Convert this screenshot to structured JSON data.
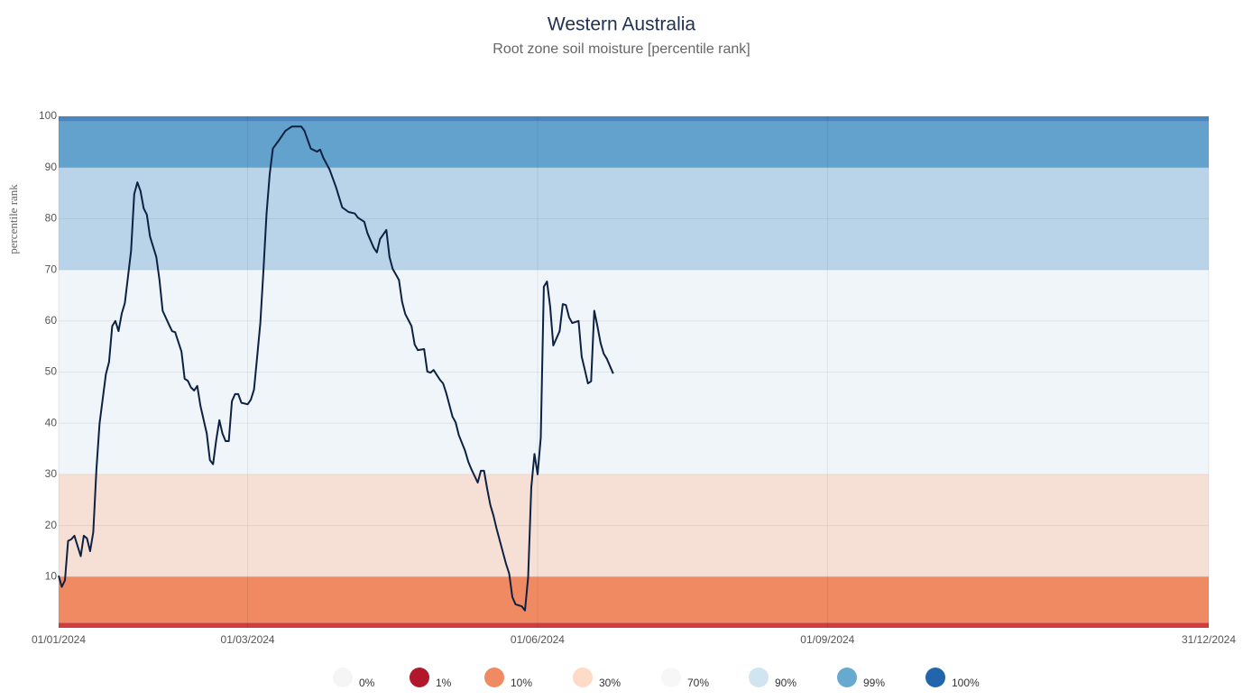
{
  "chart_data": {
    "type": "line",
    "title": "Western Australia",
    "subtitle": "Root zone soil moisture [percentile rank]",
    "y_label": "percentile rank",
    "color": "#0d2143",
    "xlim": [
      "2024-01-01",
      "2024-12-31"
    ],
    "xticks": [
      {
        "value": "2024-01-01",
        "label": "01/01/2024"
      },
      {
        "value": "2024-03-01",
        "label": "01/03/2024"
      },
      {
        "value": "2024-06-01",
        "label": "01/06/2024"
      },
      {
        "value": "2024-09-01",
        "label": "01/09/2024"
      },
      {
        "value": "2024-12-31",
        "label": "31/12/2024"
      }
    ],
    "ylim": [
      0,
      100
    ],
    "yticks": [
      10,
      20,
      30,
      40,
      50,
      60,
      70,
      80,
      90,
      100
    ],
    "grid": true,
    "bands": [
      {
        "from": 0,
        "to": 1,
        "color": "#d13c3e"
      },
      {
        "from": 1,
        "to": 10,
        "color": "#ef8a62"
      },
      {
        "from": 10,
        "to": 30,
        "color": "#f6e0d5"
      },
      {
        "from": 30,
        "to": 70,
        "color": "#eff5f9"
      },
      {
        "from": 70,
        "to": 90,
        "color": "#b9d4e8"
      },
      {
        "from": 90,
        "to": 99,
        "color": "#62a2cd"
      },
      {
        "from": 99,
        "to": 100,
        "color": "#4a86c0"
      }
    ],
    "legend": [
      {
        "label": "0%",
        "color": "#f5f5f5"
      },
      {
        "label": "1%",
        "color": "#b2182b"
      },
      {
        "label": "10%",
        "color": "#ef8a62"
      },
      {
        "label": "30%",
        "color": "#fddbc7"
      },
      {
        "label": "70%",
        "color": "#f7f7f7"
      },
      {
        "label": "90%",
        "color": "#d1e5f0"
      },
      {
        "label": "99%",
        "color": "#67a9cf"
      },
      {
        "label": "100%",
        "color": "#2166ac"
      }
    ],
    "x": [
      "2024-01-01",
      "2024-01-02",
      "2024-01-03",
      "2024-01-04",
      "2024-01-05",
      "2024-01-06",
      "2024-01-08",
      "2024-01-09",
      "2024-01-10",
      "2024-01-11",
      "2024-01-12",
      "2024-01-13",
      "2024-01-14",
      "2024-01-16",
      "2024-01-17",
      "2024-01-18",
      "2024-01-19",
      "2024-01-20",
      "2024-01-21",
      "2024-01-22",
      "2024-01-24",
      "2024-01-25",
      "2024-01-26",
      "2024-01-27",
      "2024-01-28",
      "2024-01-29",
      "2024-01-30",
      "2024-02-01",
      "2024-02-02",
      "2024-02-03",
      "2024-02-05",
      "2024-02-06",
      "2024-02-07",
      "2024-02-09",
      "2024-02-10",
      "2024-02-11",
      "2024-02-12",
      "2024-02-13",
      "2024-02-14",
      "2024-02-15",
      "2024-02-17",
      "2024-02-18",
      "2024-02-19",
      "2024-02-20",
      "2024-02-21",
      "2024-02-22",
      "2024-02-23",
      "2024-02-24",
      "2024-02-25",
      "2024-02-26",
      "2024-02-27",
      "2024-02-28",
      "2024-03-01",
      "2024-03-02",
      "2024-03-03",
      "2024-03-04",
      "2024-03-05",
      "2024-03-06",
      "2024-03-07",
      "2024-03-08",
      "2024-03-09",
      "2024-03-11",
      "2024-03-13",
      "2024-03-15",
      "2024-03-18",
      "2024-03-19",
      "2024-03-21",
      "2024-03-23",
      "2024-03-24",
      "2024-03-25",
      "2024-03-27",
      "2024-03-29",
      "2024-03-31",
      "2024-04-02",
      "2024-04-04",
      "2024-04-05",
      "2024-04-07",
      "2024-04-08",
      "2024-04-10",
      "2024-04-11",
      "2024-04-12",
      "2024-04-14",
      "2024-04-15",
      "2024-04-16",
      "2024-04-18",
      "2024-04-19",
      "2024-04-20",
      "2024-04-22",
      "2024-04-23",
      "2024-04-24",
      "2024-04-26",
      "2024-04-27",
      "2024-04-28",
      "2024-04-29",
      "2024-05-01",
      "2024-05-02",
      "2024-05-03",
      "2024-05-05",
      "2024-05-06",
      "2024-05-07",
      "2024-05-09",
      "2024-05-10",
      "2024-05-11",
      "2024-05-13",
      "2024-05-14",
      "2024-05-15",
      "2024-05-16",
      "2024-05-17",
      "2024-05-18",
      "2024-05-19",
      "2024-05-21",
      "2024-05-22",
      "2024-05-23",
      "2024-05-24",
      "2024-05-25",
      "2024-05-27",
      "2024-05-28",
      "2024-05-29",
      "2024-05-30",
      "2024-05-31",
      "2024-06-01",
      "2024-06-02",
      "2024-06-03",
      "2024-06-04",
      "2024-06-05",
      "2024-06-06",
      "2024-06-08",
      "2024-06-09",
      "2024-06-10",
      "2024-06-11",
      "2024-06-12",
      "2024-06-14",
      "2024-06-15",
      "2024-06-16",
      "2024-06-17",
      "2024-06-18",
      "2024-06-19",
      "2024-06-20",
      "2024-06-21",
      "2024-06-22",
      "2024-06-23",
      "2024-06-25"
    ],
    "values": [
      10.2,
      8,
      9.3,
      17,
      17.3,
      18,
      14,
      18,
      17.5,
      15,
      18.7,
      31,
      40,
      49.6,
      52,
      59,
      60,
      58,
      61.4,
      63.5,
      73.7,
      84.8,
      87.1,
      85.4,
      82,
      80.8,
      76.5,
      72.5,
      68,
      62,
      59.3,
      58,
      57.8,
      54,
      48.7,
      48.3,
      47,
      46.4,
      47.3,
      43.4,
      38,
      32.8,
      32,
      36.7,
      40.6,
      38,
      36.5,
      36.5,
      44.3,
      45.7,
      45.7,
      44,
      43.7,
      44.6,
      46.6,
      53,
      59.6,
      70,
      81,
      88.7,
      93.7,
      95.4,
      97.2,
      98,
      98,
      97.2,
      93.7,
      93.1,
      93.5,
      91.9,
      89.6,
      86.2,
      82.2,
      81.3,
      81,
      80.2,
      79.4,
      77.2,
      74.3,
      73.4,
      76,
      77.8,
      72.5,
      70.2,
      68,
      63.7,
      61.4,
      59,
      55.4,
      54.3,
      54.5,
      50.1,
      49.9,
      50.4,
      48.5,
      47.8,
      45.9,
      41.3,
      40.2,
      37.7,
      34.6,
      32.5,
      31,
      28.4,
      30.7,
      30.7,
      27.2,
      24,
      21.9,
      19.4,
      14.8,
      12.5,
      10.6,
      6,
      4.6,
      4.2,
      3.4,
      9.9,
      27.5,
      34,
      30,
      37.2,
      66.7,
      67.7,
      62.8,
      55.2,
      58,
      63.3,
      63.1,
      60.7,
      59.6,
      60,
      53,
      50.4,
      47.8,
      48.2,
      62,
      59,
      55.7,
      53.6,
      52.6,
      49.7
    ]
  }
}
